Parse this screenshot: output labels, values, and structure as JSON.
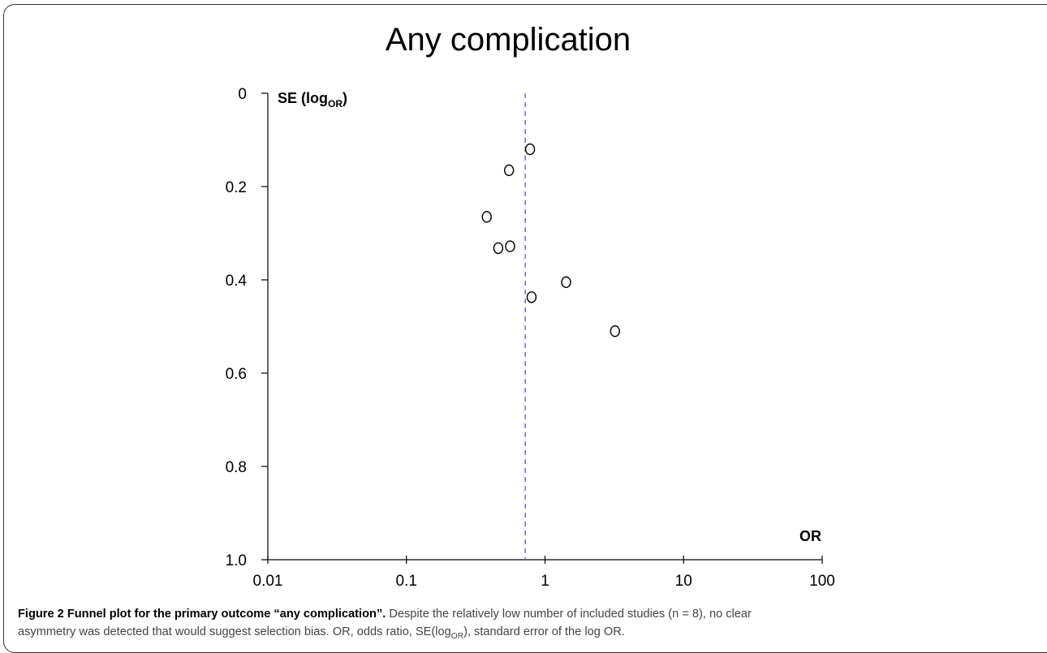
{
  "chart_data": {
    "type": "scatter",
    "title": "Any complication",
    "ylabel_main": "SE (log",
    "ylabel_sub": "OR",
    "ylabel_close": ")",
    "xlabel": "OR",
    "x_scale": "log",
    "xlim": [
      0.01,
      100
    ],
    "ylim": [
      0,
      1.0
    ],
    "y_inverted": true,
    "xticks": [
      0.01,
      0.1,
      1,
      10,
      100
    ],
    "xtick_labels": [
      "0.01",
      "0.1",
      "1",
      "10",
      "100"
    ],
    "yticks": [
      0,
      0.2,
      0.4,
      0.6,
      0.8,
      1.0
    ],
    "ytick_labels": [
      "0",
      "0.2",
      "0.4",
      "0.6",
      "0.8",
      "1.0"
    ],
    "reference_line_x": 0.72,
    "reference_line_color": "#5a5ab8",
    "grid": false,
    "points": [
      {
        "x": 0.78,
        "y": 0.12
      },
      {
        "x": 0.55,
        "y": 0.165
      },
      {
        "x": 0.38,
        "y": 0.265
      },
      {
        "x": 0.46,
        "y": 0.332
      },
      {
        "x": 0.56,
        "y": 0.328
      },
      {
        "x": 1.42,
        "y": 0.405
      },
      {
        "x": 0.8,
        "y": 0.437
      },
      {
        "x": 3.2,
        "y": 0.51
      }
    ]
  },
  "caption": {
    "label": "Figure 2",
    "title": "Funnel plot for the primary outcome “any complication”.",
    "text_line1_start": "Despite the relatively low number of included studies (n = 8), no clear",
    "text_line2_start": "asymmetry was detected that would suggest selection bias. OR, odds ratio, SE(log",
    "text_sub": "OR",
    "text_line2_end": "), standard error of the log OR."
  }
}
